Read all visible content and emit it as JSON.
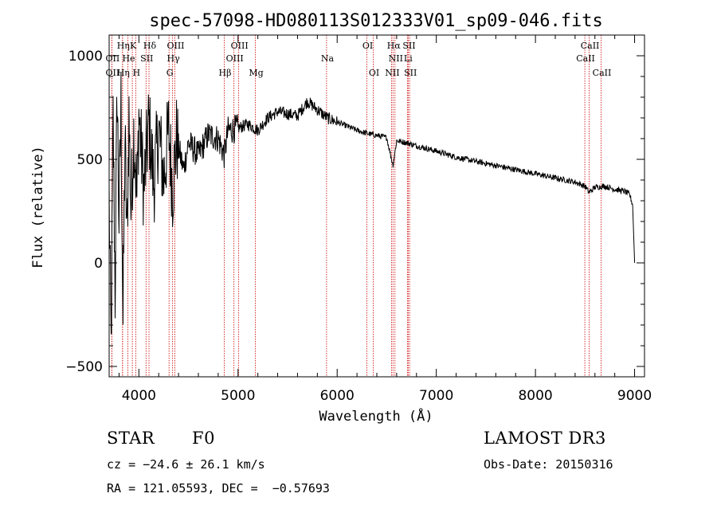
{
  "chart_data": {
    "type": "line",
    "title": "spec-57098-HD080113S012333V01_sp09-046.fits",
    "xlabel": "Wavelength (Å)",
    "ylabel": "Flux (relative)",
    "xlim": [
      3700,
      9100
    ],
    "ylim": [
      -550,
      1100
    ],
    "xticks": [
      4000,
      5000,
      6000,
      7000,
      8000,
      9000
    ],
    "yticks": [
      -500,
      0,
      500,
      1000
    ],
    "color": "#000000",
    "line_color": "#cc0000",
    "series": [
      {
        "name": "flux",
        "x": [
          3700,
          3720,
          3740,
          3760,
          3780,
          3800,
          3820,
          3840,
          3860,
          3880,
          3900,
          3920,
          3950,
          3980,
          4000,
          4050,
          4100,
          4150,
          4200,
          4250,
          4300,
          4340,
          4380,
          4450,
          4500,
          4600,
          4700,
          4800,
          4861,
          4900,
          5000,
          5100,
          5200,
          5300,
          5400,
          5500,
          5600,
          5700,
          5800,
          5900,
          6000,
          6100,
          6200,
          6300,
          6400,
          6500,
          6563,
          6600,
          6700,
          6800,
          7000,
          7200,
          7400,
          7600,
          7800,
          8000,
          8200,
          8400,
          8500,
          8542,
          8600,
          8700,
          8800,
          8900,
          8950,
          8980,
          9000
        ],
        "y": [
          300,
          -420,
          700,
          -150,
          850,
          200,
          780,
          -300,
          600,
          100,
          720,
          250,
          650,
          300,
          720,
          350,
          680,
          380,
          640,
          400,
          650,
          350,
          600,
          450,
          580,
          520,
          620,
          600,
          520,
          640,
          650,
          670,
          640,
          700,
          730,
          720,
          710,
          780,
          740,
          700,
          680,
          660,
          640,
          625,
          615,
          605,
          470,
          590,
          580,
          565,
          540,
          510,
          490,
          470,
          450,
          430,
          410,
          390,
          370,
          340,
          365,
          370,
          355,
          345,
          330,
          280,
          0
        ]
      }
    ],
    "spectral_lines": [
      {
        "label": "Hη",
        "x": 3835,
        "row": 1
      },
      {
        "label": "K",
        "x": 3934,
        "row": 1
      },
      {
        "label": "Hδ",
        "x": 4102,
        "row": 1
      },
      {
        "label": "OIII",
        "x": 4363,
        "row": 1
      },
      {
        "label": "OIII",
        "x": 5007,
        "row": 1
      },
      {
        "label": "OI",
        "x": 6300,
        "row": 1
      },
      {
        "label": "Hα",
        "x": 6563,
        "row": 1
      },
      {
        "label": "SII",
        "x": 6717,
        "row": 1
      },
      {
        "label": "CaII",
        "x": 8542,
        "row": 1
      },
      {
        "label": "OII",
        "x": 3727,
        "row": 2
      },
      {
        "label": "He",
        "x": 3889,
        "row": 2
      },
      {
        "label": "SII",
        "x": 4072,
        "row": 2
      },
      {
        "label": "Hγ",
        "x": 4340,
        "row": 2
      },
      {
        "label": "OIII",
        "x": 4959,
        "row": 2
      },
      {
        "label": "Na",
        "x": 5893,
        "row": 2
      },
      {
        "label": "NII",
        "x": 6583,
        "row": 2
      },
      {
        "label": "Li",
        "x": 6708,
        "row": 2
      },
      {
        "label": "CaII",
        "x": 8498,
        "row": 2
      },
      {
        "label": "OII",
        "x": 3727,
        "row": 3
      },
      {
        "label": "Hη",
        "x": 3835,
        "row": 3
      },
      {
        "label": "H",
        "x": 3968,
        "row": 3
      },
      {
        "label": "G",
        "x": 4304,
        "row": 3
      },
      {
        "label": "Hβ",
        "x": 4861,
        "row": 3
      },
      {
        "label": "Mg",
        "x": 5175,
        "row": 3
      },
      {
        "label": "OI",
        "x": 6364,
        "row": 3
      },
      {
        "label": "NII",
        "x": 6548,
        "row": 3
      },
      {
        "label": "SII",
        "x": 6731,
        "row": 3
      },
      {
        "label": "CaII",
        "x": 8662,
        "row": 3
      }
    ]
  },
  "info": {
    "object_class": "STAR",
    "subclass": "F0",
    "survey": "LAMOST DR3",
    "cz": "cz = −24.6 ± 26.1 km/s",
    "obs_date": "Obs-Date: 20150316",
    "coords": "RA = 121.05593, DEC =  −0.57693"
  }
}
